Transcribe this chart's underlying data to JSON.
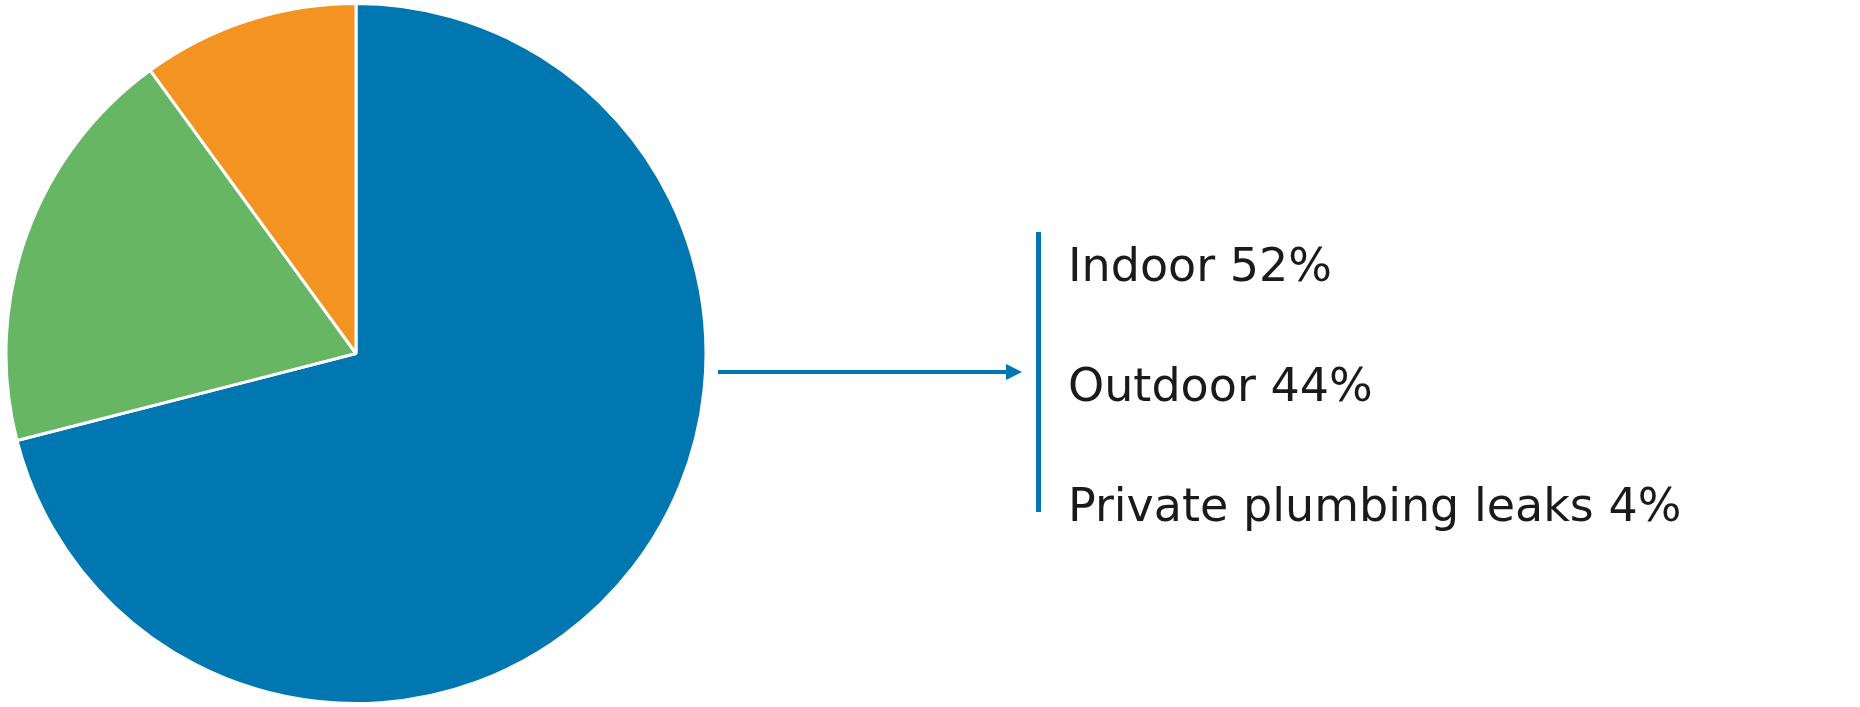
{
  "chart_data": {
    "type": "pie",
    "categories": [
      null,
      null,
      null
    ],
    "values": [
      71,
      19,
      10
    ],
    "colors": [
      "#0077b0",
      "#66b664",
      "#f39322"
    ],
    "legend": false,
    "annotations": [
      "Indoor 52%",
      "Outdoor 44%",
      "Private plumbing leaks 4%"
    ]
  }
}
